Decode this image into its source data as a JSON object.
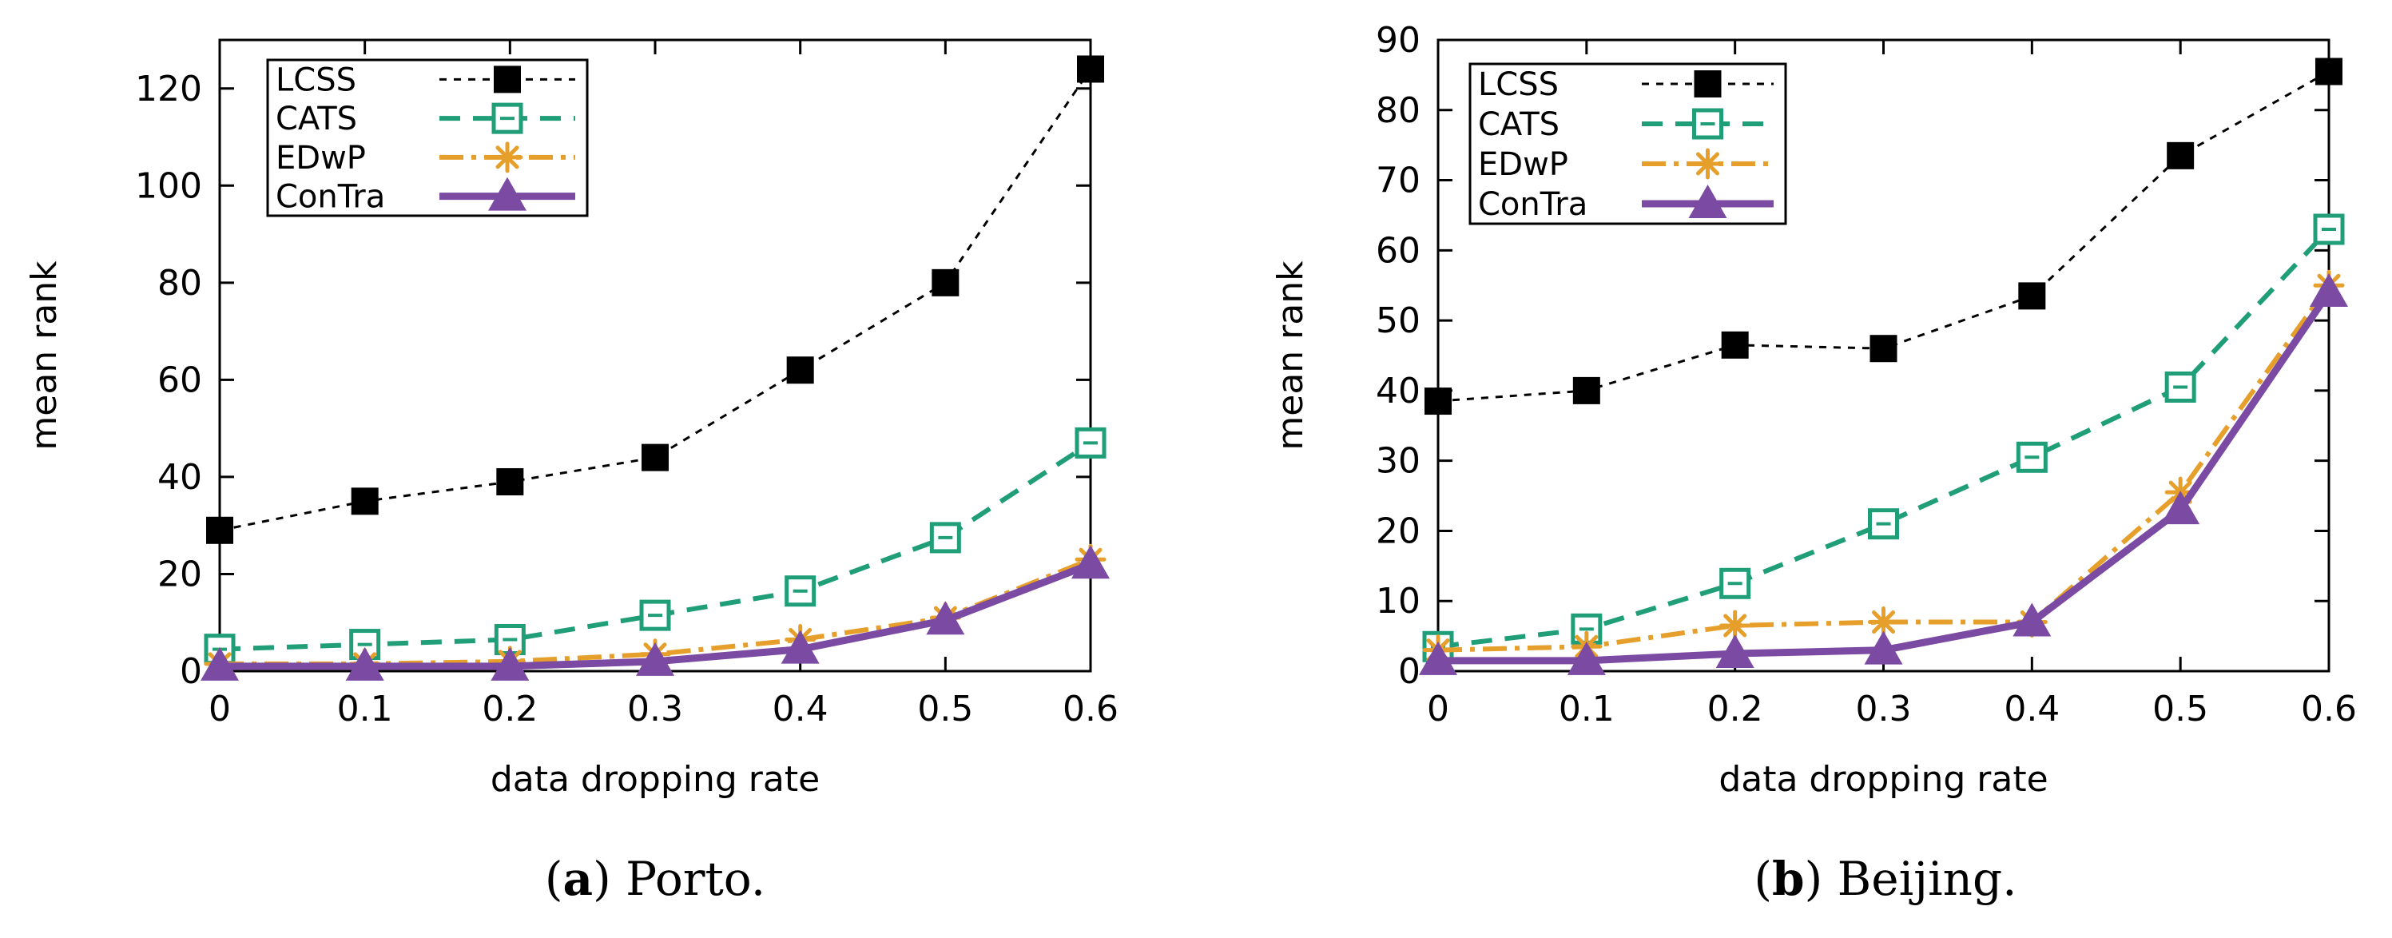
{
  "chart_data": [
    {
      "type": "line",
      "caption_letter": "a",
      "caption_text": "Porto.",
      "xlabel": "data dropping rate",
      "ylabel": "mean rank",
      "x": [
        0,
        0.1,
        0.2,
        0.3,
        0.4,
        0.5,
        0.6
      ],
      "xtick_labels": [
        "0",
        "0.1",
        "0.2",
        "0.3",
        "0.4",
        "0.5",
        "0.6"
      ],
      "xlim": [
        0,
        0.6
      ],
      "ylim": [
        0,
        130
      ],
      "yticks": [
        0,
        20,
        40,
        60,
        80,
        100,
        120
      ],
      "ytick_labels": [
        "0",
        "20",
        "40",
        "60",
        "80",
        "100",
        "120"
      ],
      "legend_position": "top-left",
      "series": [
        {
          "name": "LCSS",
          "values": [
            29,
            35,
            39,
            44,
            62,
            80,
            124
          ]
        },
        {
          "name": "CATS",
          "values": [
            4.5,
            5.5,
            6.5,
            11.5,
            16.5,
            27.5,
            47
          ]
        },
        {
          "name": "EDwP",
          "values": [
            1.5,
            1.5,
            2,
            3.5,
            6.5,
            11,
            23
          ]
        },
        {
          "name": "ConTra",
          "values": [
            1,
            1,
            1,
            2,
            4.5,
            10.5,
            22
          ]
        }
      ]
    },
    {
      "type": "line",
      "caption_letter": "b",
      "caption_text": "Beijing.",
      "xlabel": "data dropping rate",
      "ylabel": "mean rank",
      "x": [
        0,
        0.1,
        0.2,
        0.3,
        0.4,
        0.5,
        0.6
      ],
      "xtick_labels": [
        "0",
        "0.1",
        "0.2",
        "0.3",
        "0.4",
        "0.5",
        "0.6"
      ],
      "xlim": [
        0,
        0.6
      ],
      "ylim": [
        0,
        90
      ],
      "yticks": [
        0,
        10,
        20,
        30,
        40,
        50,
        60,
        70,
        80,
        90
      ],
      "ytick_labels": [
        "0",
        "10",
        "20",
        "30",
        "40",
        "50",
        "60",
        "70",
        "80",
        "90"
      ],
      "legend_position": "top-left",
      "series": [
        {
          "name": "LCSS",
          "values": [
            38.5,
            40,
            46.5,
            46,
            53.5,
            73.5,
            85.5
          ]
        },
        {
          "name": "CATS",
          "values": [
            3.5,
            6,
            12.5,
            21,
            30.5,
            40.5,
            63
          ]
        },
        {
          "name": "EDwP",
          "values": [
            3,
            3.5,
            6.5,
            7,
            7,
            25.5,
            55
          ]
        },
        {
          "name": "ConTra",
          "values": [
            1.5,
            1.5,
            2.5,
            3,
            7,
            23,
            54
          ]
        }
      ]
    }
  ],
  "series_styles": {
    "LCSS": {
      "color": "#000000",
      "marker": "filled-square"
    },
    "CATS": {
      "color": "#1f9e78",
      "marker": "open-square"
    },
    "EDwP": {
      "color": "#e69f2a",
      "marker": "asterisk"
    },
    "ConTra": {
      "color": "#7b4aa3",
      "marker": "filled-triangle"
    }
  }
}
